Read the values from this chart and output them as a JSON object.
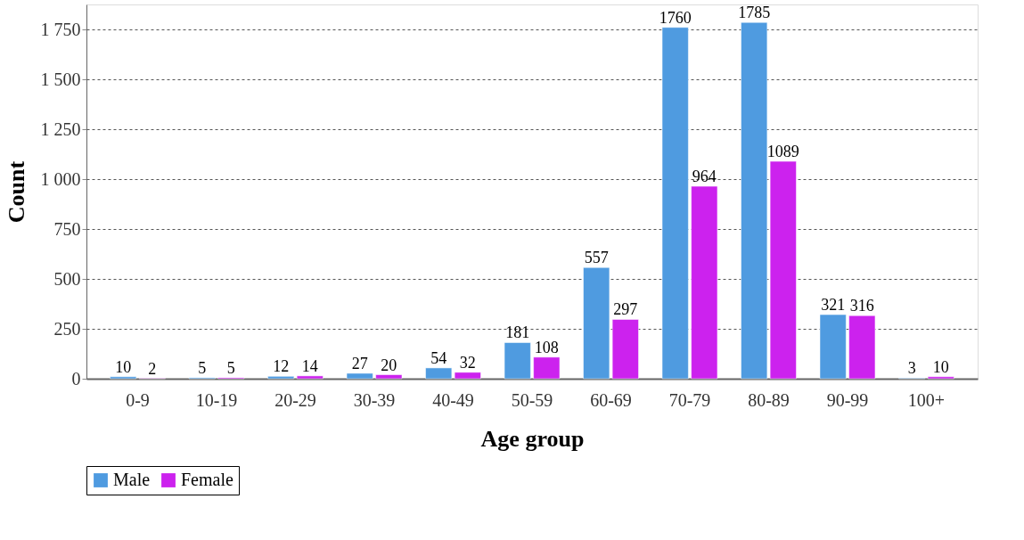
{
  "chart_data": {
    "type": "bar",
    "xlabel": "Age group",
    "ylabel": "Count",
    "categories": [
      "0-9",
      "10-19",
      "20-29",
      "30-39",
      "40-49",
      "50-59",
      "60-69",
      "70-79",
      "80-89",
      "90-99",
      "100+"
    ],
    "series": [
      {
        "name": "Male",
        "color": "#4f9be0",
        "values": [
          10,
          5,
          12,
          27,
          54,
          181,
          557,
          1760,
          1785,
          321,
          3
        ]
      },
      {
        "name": "Female",
        "color": "#cc22ee",
        "values": [
          2,
          5,
          14,
          20,
          32,
          108,
          297,
          964,
          1089,
          316,
          10
        ]
      }
    ],
    "ylim": [
      0,
      1875
    ],
    "yticks": [
      0,
      250,
      500,
      750,
      {
        "value": 1000,
        "label": "1 000"
      },
      {
        "value": 1250,
        "label": "1 250"
      },
      {
        "value": 1500,
        "label": "1 500"
      },
      {
        "value": 1750,
        "label": "1 750"
      }
    ],
    "grid": "y",
    "legend": "bottom",
    "data_labels": true
  }
}
